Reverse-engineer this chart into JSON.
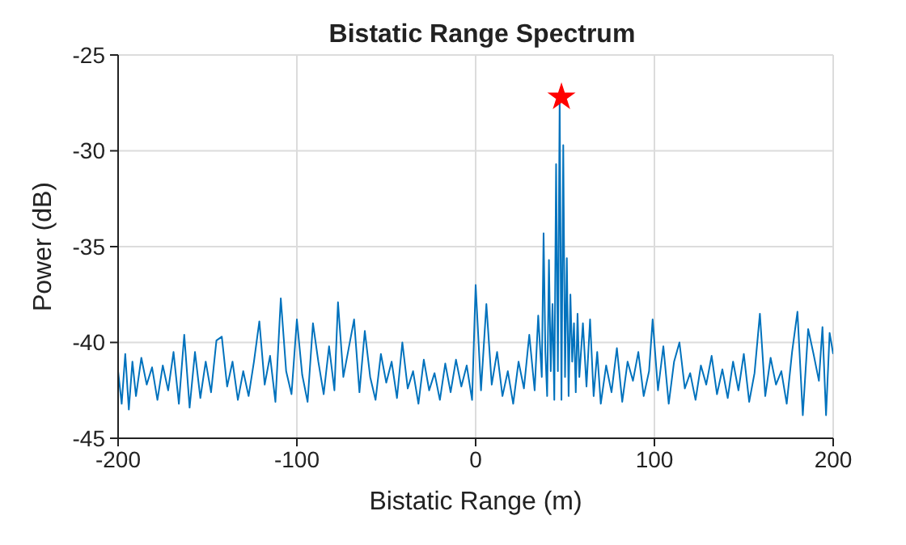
{
  "chart_data": {
    "type": "line",
    "title": "Bistatic Range Spectrum",
    "xlabel": "Bistatic Range (m)",
    "ylabel": "Power (dB)",
    "xlim": [
      -200,
      200
    ],
    "ylim": [
      -45,
      -25
    ],
    "xticks": [
      -200,
      -100,
      0,
      100,
      200
    ],
    "yticks": [
      -45,
      -40,
      -35,
      -30,
      -25
    ],
    "grid": true,
    "legend": false,
    "series": [
      {
        "color": "#0072bd",
        "x": [
          -200,
          -198,
          -196,
          -194,
          -192,
          -190,
          -187,
          -184,
          -181,
          -178,
          -175,
          -172,
          -169,
          -166,
          -163,
          -160,
          -157,
          -154,
          -151,
          -148,
          -145,
          -142,
          -139,
          -136,
          -133,
          -130,
          -127,
          -124,
          -121,
          -118,
          -115,
          -112,
          -109,
          -106,
          -103,
          -100,
          -97,
          -94,
          -91,
          -88,
          -85,
          -82,
          -79,
          -77,
          -74,
          -71,
          -68,
          -65,
          -62,
          -59,
          -56,
          -53,
          -50,
          -47,
          -44,
          -41,
          -38,
          -35,
          -32,
          -29,
          -26,
          -23,
          -20,
          -17,
          -14,
          -11,
          -8,
          -5,
          -2,
          0,
          3,
          6,
          9,
          12,
          15,
          18,
          21,
          24,
          27,
          30,
          33,
          35,
          37,
          38,
          39,
          40,
          41,
          42,
          43,
          44,
          45,
          46,
          47,
          48,
          49,
          50,
          51,
          52,
          53,
          54,
          55,
          56,
          57,
          58,
          60,
          62,
          64,
          66,
          68,
          70,
          73,
          76,
          79,
          82,
          85,
          88,
          91,
          94,
          97,
          99,
          102,
          105,
          108,
          111,
          114,
          117,
          120,
          123,
          126,
          129,
          132,
          135,
          138,
          141,
          144,
          147,
          150,
          153,
          156,
          159,
          162,
          165,
          168,
          171,
          174,
          177,
          180,
          183,
          186,
          189,
          192,
          194,
          196,
          198,
          200
        ],
        "values": [
          -41.5,
          -43.2,
          -40.6,
          -43.5,
          -41,
          -42.8,
          -40.8,
          -42.2,
          -41.3,
          -43,
          -41.2,
          -42.5,
          -40.5,
          -43.2,
          -39.6,
          -43.4,
          -40.5,
          -42.9,
          -41,
          -42.6,
          -39.9,
          -39.7,
          -42.3,
          -41,
          -43,
          -41.5,
          -42.8,
          -41,
          -38.9,
          -42.2,
          -40.7,
          -43.1,
          -37.7,
          -41.5,
          -42.7,
          -38.8,
          -41.7,
          -43.1,
          -39,
          -41,
          -42.7,
          -40.2,
          -42.5,
          -37.9,
          -41.8,
          -40.3,
          -38.8,
          -42.6,
          -39.4,
          -41.8,
          -43,
          -40.6,
          -42.1,
          -41,
          -42.9,
          -40,
          -42.4,
          -41.5,
          -43.2,
          -40.9,
          -42.5,
          -41.6,
          -43,
          -41.1,
          -42.6,
          -40.9,
          -42.3,
          -41.2,
          -43,
          -37,
          -42.5,
          -38,
          -42.2,
          -40.5,
          -42.8,
          -41.5,
          -43.2,
          -41,
          -42.4,
          -39.6,
          -42.5,
          -38.6,
          -41.8,
          -34.3,
          -40.5,
          -42.8,
          -35.7,
          -41.5,
          -38,
          -43,
          -30.7,
          -41.5,
          -27.2,
          -43,
          -29.7,
          -41.8,
          -35.6,
          -42.8,
          -37.5,
          -41,
          -39,
          -42.6,
          -38.5,
          -41.8,
          -39,
          -42.3,
          -38.8,
          -42.8,
          -40.5,
          -43.2,
          -41.2,
          -42.6,
          -40.3,
          -43.1,
          -41,
          -42,
          -40.5,
          -42.8,
          -41.5,
          -38.8,
          -42.5,
          -40.2,
          -43.2,
          -41,
          -40,
          -42.4,
          -41.6,
          -43,
          -41.2,
          -42.2,
          -40.7,
          -42.7,
          -41.4,
          -42.9,
          -41,
          -42.5,
          -40.6,
          -43.1,
          -41.6,
          -38.5,
          -42.8,
          -40.8,
          -42.2,
          -41.5,
          -43.2,
          -40.5,
          -38.4,
          -43.8,
          -39.3,
          -40.6,
          -42,
          -39.2,
          -43.8,
          -39.5,
          -40.6
        ]
      },
      {
        "type": "scatter",
        "marker": "star",
        "color": "#ff0000",
        "x": [
          48
        ],
        "values": [
          -27.2
        ]
      }
    ]
  }
}
